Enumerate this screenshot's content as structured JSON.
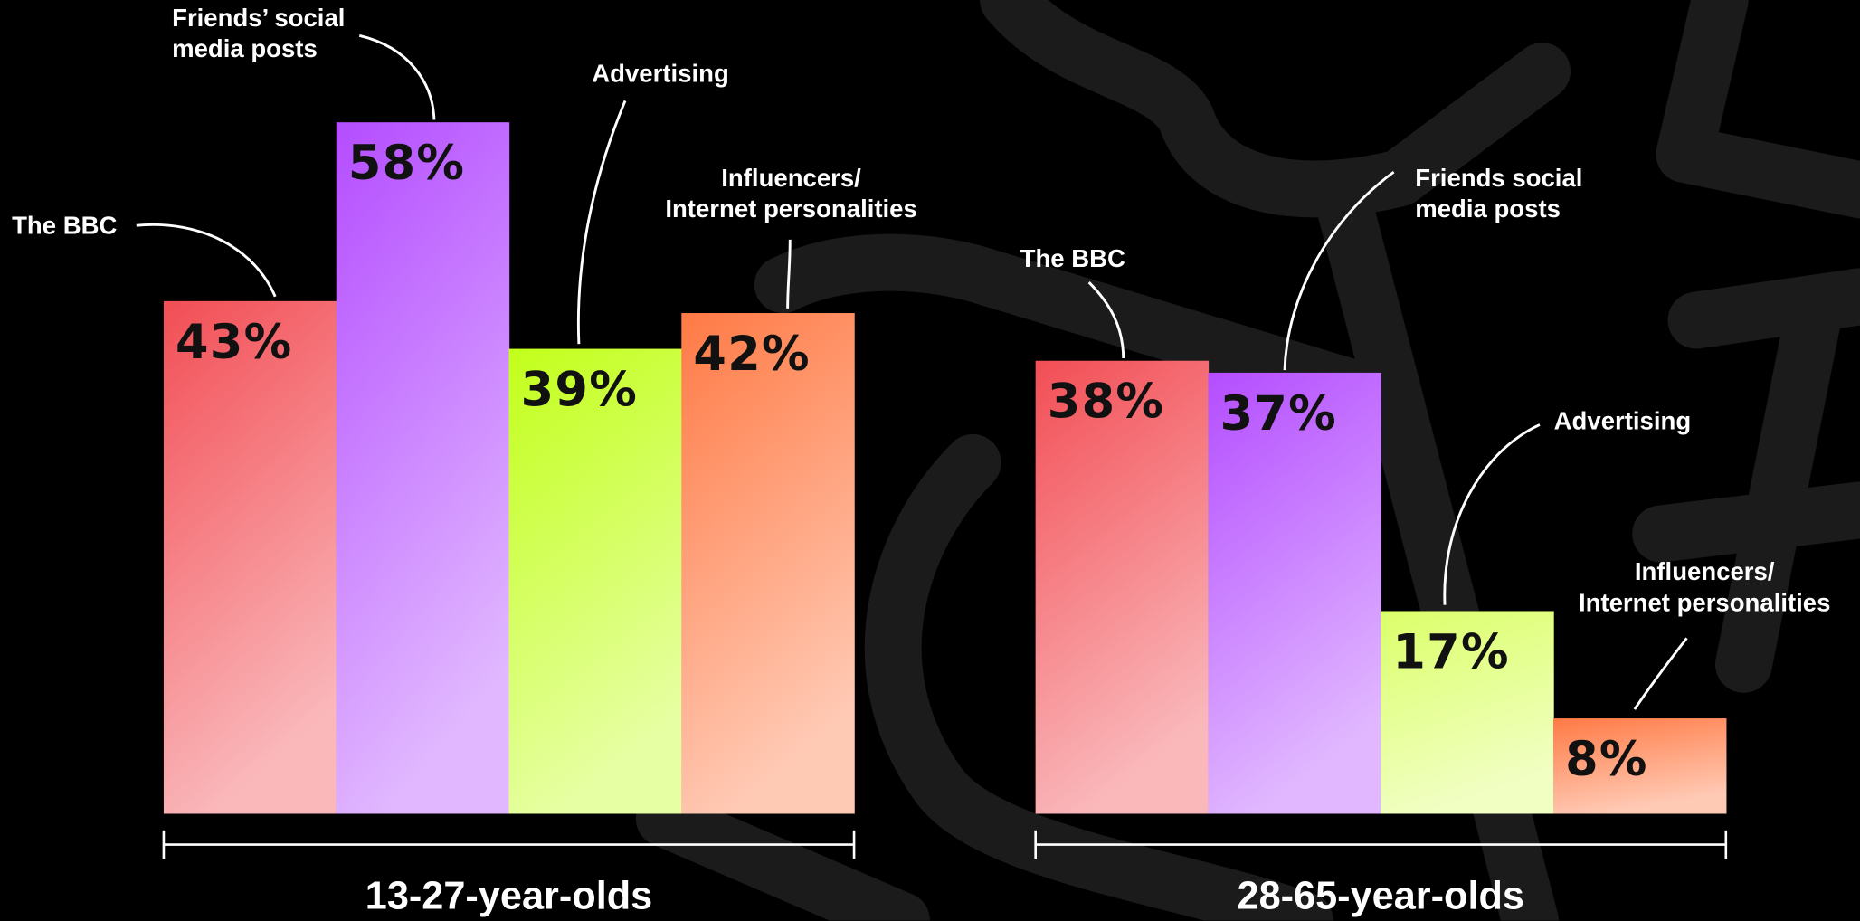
{
  "chart_data": [
    {
      "type": "bar",
      "title": "13-27-year-olds",
      "categories": [
        "The BBC",
        "Friends’ social media posts",
        "Advertising",
        "Influencers/ Internet personalities"
      ],
      "values": [
        43,
        58,
        39,
        42
      ],
      "value_labels": [
        "43%",
        "58%",
        "39%",
        "42%"
      ],
      "colors": [
        "#f24e55",
        "#b44dff",
        "#c2ff1a",
        "#ff7a45"
      ]
    },
    {
      "type": "bar",
      "title": "28-65-year-olds",
      "categories": [
        "The BBC",
        "Friends social media posts",
        "Advertising",
        "Influencers/ Internet personalities"
      ],
      "values": [
        38,
        37,
        17,
        8
      ],
      "value_labels": [
        "38%",
        "37%",
        "17%",
        "8%"
      ],
      "colors": [
        "#f24e55",
        "#b44dff",
        "#dcff6a",
        "#ff7a45"
      ]
    }
  ]
}
